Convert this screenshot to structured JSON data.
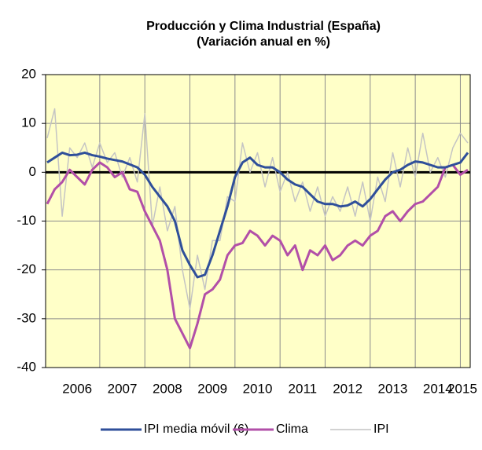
{
  "chart_data": {
    "type": "line",
    "title": "Producción y Clima Industrial (España)",
    "subtitle": "(Variación anual en %)",
    "categories": [
      null,
      null,
      null,
      null,
      "2006",
      null,
      null,
      null,
      null,
      null,
      "2007",
      null,
      null,
      null,
      null,
      null,
      "2008",
      null,
      null,
      null,
      null,
      null,
      "2009",
      null,
      null,
      null,
      null,
      null,
      "2010",
      null,
      null,
      null,
      null,
      null,
      "2011",
      null,
      null,
      null,
      null,
      null,
      "2012",
      null,
      null,
      null,
      null,
      null,
      "2013",
      null,
      null,
      null,
      null,
      null,
      "2014",
      null,
      null,
      null,
      "2015"
    ],
    "series": [
      {
        "name": "IPI media móvil (6)",
        "color": "#2f4f9a",
        "width": 3,
        "values": [
          2,
          3,
          4,
          3.5,
          3.6,
          4,
          3.5,
          3.2,
          2.8,
          2.5,
          2.2,
          1.6,
          1,
          -0.5,
          -3,
          -5,
          -7,
          -10,
          -16,
          -19,
          -21.5,
          -21,
          -17,
          -12,
          -7,
          -1,
          2,
          3,
          1.5,
          1,
          1,
          0,
          -1.5,
          -2.5,
          -3,
          -4.5,
          -6,
          -6.5,
          -6.5,
          -7,
          -6.8,
          -6,
          -7,
          -5.5,
          -3.5,
          -1.5,
          0,
          0.5,
          1.5,
          2.2,
          2,
          1.5,
          1,
          1,
          1.5,
          2,
          4
        ]
      },
      {
        "name": "Clima",
        "color": "#b24fa8",
        "width": 3,
        "values": [
          -6.5,
          -3.5,
          -2,
          0.5,
          -1,
          -2.5,
          0.5,
          2,
          1,
          -1,
          0,
          -3.5,
          -4,
          -8,
          -11,
          -14,
          -20,
          -30,
          -33,
          -36,
          -31,
          -25,
          -24,
          -22,
          -17,
          -15,
          -14.5,
          -12,
          -13,
          -15,
          -13,
          -14,
          -17,
          -15,
          -20,
          -16,
          -17,
          -15,
          -18,
          -17,
          -15,
          -14,
          -15,
          -13,
          -12,
          -9,
          -8,
          -10,
          -8,
          -6.5,
          -6,
          -4.5,
          -3,
          1,
          1.5,
          -0.5,
          0.5
        ]
      },
      {
        "name": "IPI",
        "color": "#c4c4c4",
        "width": 1.5,
        "values": [
          7,
          13,
          -9,
          5,
          3,
          6,
          1,
          6,
          2,
          4,
          -1,
          3,
          -2,
          12,
          -11,
          -3,
          -12,
          -7,
          -20,
          -28,
          -17,
          -24,
          -14,
          -14,
          -5,
          -6,
          6,
          0,
          4,
          -3,
          3,
          -4,
          0,
          -6,
          -2,
          -8,
          -3,
          -9,
          -5,
          -8,
          -3,
          -9,
          -2,
          -10,
          -1,
          -6,
          4,
          -3,
          5,
          -1,
          8,
          0,
          3,
          -1,
          5,
          8,
          6
        ]
      }
    ],
    "ylim": [
      -40,
      20
    ],
    "yticks": [
      -40,
      -30,
      -20,
      -10,
      0,
      10,
      20
    ],
    "grid": true
  }
}
